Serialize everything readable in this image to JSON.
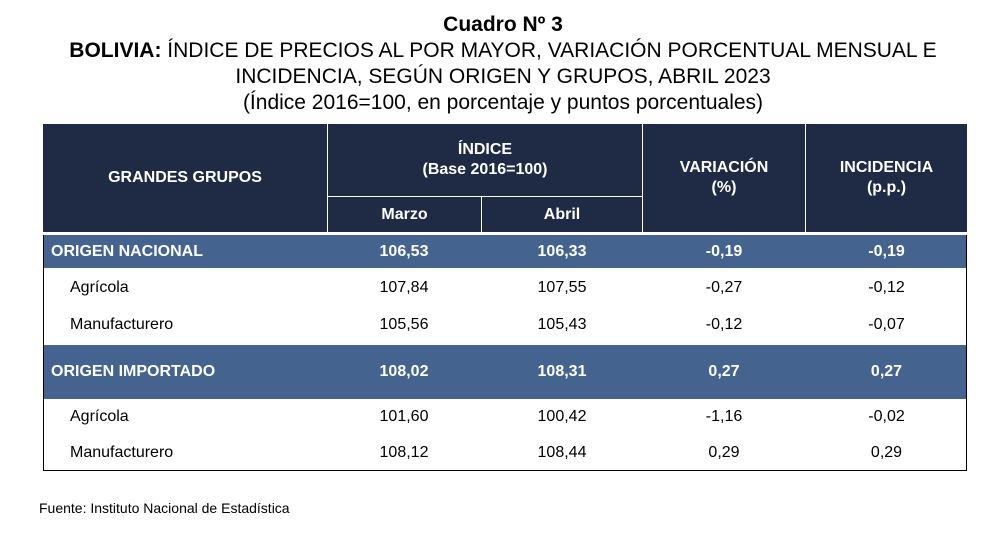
{
  "title": {
    "number": "Cuadro Nº 3",
    "country": "BOLIVIA:",
    "line1_rest": " ÍNDICE DE PRECIOS AL POR MAYOR, VARIACIÓN PORCENTUAL MENSUAL E",
    "line2": "INCIDENCIA, SEGÚN ORIGEN Y GRUPOS, ABRIL 2023",
    "line3": "(Índice 2016=100, en porcentaje y puntos porcentuales)"
  },
  "header": {
    "grupos": "GRANDES GRUPOS",
    "indice": "ÍNDICE",
    "indice_base": "(Base 2016=100)",
    "marzo": "Marzo",
    "abril": "Abril",
    "variacion": "VARIACIÓN",
    "variacion_unit": "(%)",
    "incidencia": "INCIDENCIA",
    "incidencia_unit": "(p.p.)"
  },
  "rows": [
    {
      "name": "ORIGEN NACIONAL",
      "marzo": "106,53",
      "abril": "106,33",
      "variacion": "-0,19",
      "incidencia": "-0,19"
    },
    {
      "name": "Agrícola",
      "marzo": "107,84",
      "abril": "107,55",
      "variacion": "-0,27",
      "incidencia": "-0,12"
    },
    {
      "name": "Manufacturero",
      "marzo": "105,56",
      "abril": "105,43",
      "variacion": "-0,12",
      "incidencia": "-0,07"
    },
    {
      "name": "ORIGEN IMPORTADO",
      "marzo": "108,02",
      "abril": "108,31",
      "variacion": "0,27",
      "incidencia": "0,27"
    },
    {
      "name": "Agrícola",
      "marzo": "101,60",
      "abril": "100,42",
      "variacion": "-1,16",
      "incidencia": "-0,02"
    },
    {
      "name": "Manufacturero",
      "marzo": "108,12",
      "abril": "108,44",
      "variacion": "0,29",
      "incidencia": "0,29"
    }
  ],
  "source": "Fuente: Instituto Nacional de Estadística",
  "colors": {
    "header_bg": "#1f2a44",
    "group_row_bg": "#44638f"
  }
}
